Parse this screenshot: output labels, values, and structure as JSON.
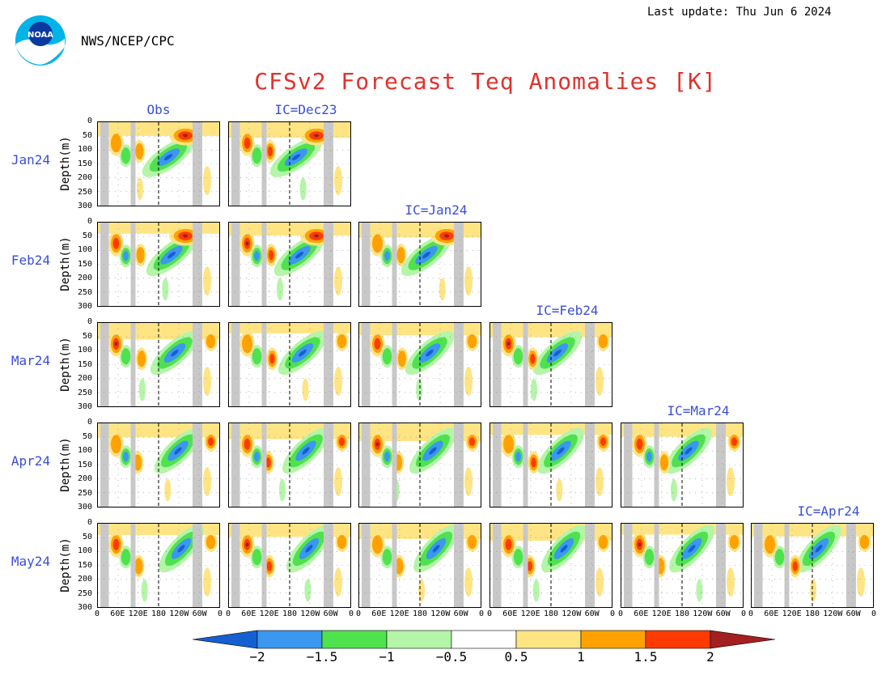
{
  "header": {
    "agency": "NWS/NCEP/CPC",
    "last_update": "Last update: Thu Jun 6 2024",
    "title": "CFSv2 Forecast Teq Anomalies [K]"
  },
  "logo": {
    "text": "NOAA",
    "icon": "noaa-logo"
  },
  "chart_data": {
    "type": "heatmap",
    "title": "CFSv2 Forecast Teq Anomalies [K]",
    "ylabel": "Depth(m)",
    "ylim": [
      0,
      300
    ],
    "y_ticks": [
      "0",
      "50",
      "100",
      "150",
      "200",
      "250",
      "300"
    ],
    "x_ticks": [
      "0",
      "60E",
      "120E",
      "180",
      "120W",
      "60W",
      "0"
    ],
    "rows": [
      "Jan24",
      "Feb24",
      "Mar24",
      "Apr24",
      "May24"
    ],
    "columns": [
      "Obs",
      "IC=Dec23",
      "IC=Jan24",
      "IC=Feb24",
      "IC=Mar24",
      "IC=Apr24"
    ],
    "column_header_rows": [
      0,
      0,
      1,
      2,
      3,
      4
    ],
    "panels": [
      [
        true,
        true,
        false,
        false,
        false,
        false
      ],
      [
        true,
        true,
        true,
        false,
        false,
        false
      ],
      [
        true,
        true,
        true,
        true,
        false,
        false
      ],
      [
        true,
        true,
        true,
        true,
        true,
        false
      ],
      [
        true,
        true,
        true,
        true,
        true,
        true
      ]
    ],
    "colorbar": {
      "levels": [
        "−2",
        "−1.5",
        "−1",
        "−0.5",
        "0.5",
        "1",
        "1.5",
        "2"
      ],
      "colors": [
        "#1560d0",
        "#3b97f0",
        "#4fe24f",
        "#b4f5a8",
        "#ffffff",
        "#ffe484",
        "#ffa200",
        "#ff3a00",
        "#a41f1f"
      ]
    }
  }
}
